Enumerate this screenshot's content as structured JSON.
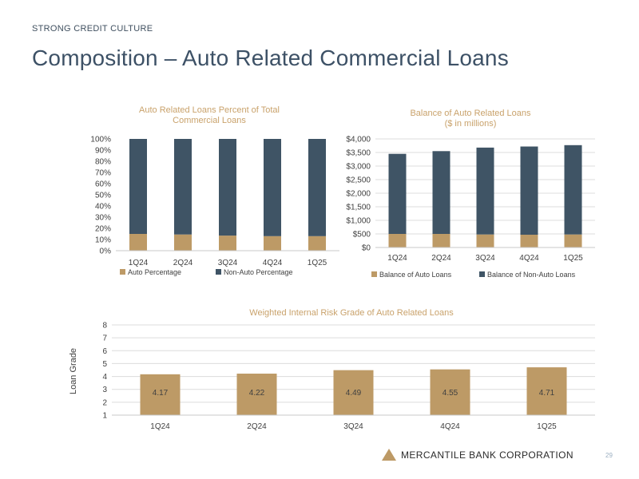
{
  "header": {
    "section": "STRONG CREDIT CULTURE",
    "title": "Composition – Auto Related Commercial Loans"
  },
  "colors": {
    "auto": "#bd9a66",
    "non_auto": "#3f5465",
    "title_gold": "#c9a26b",
    "grid": "#dcdcdc",
    "text": "#404040"
  },
  "chart_data": [
    {
      "id": "pct",
      "type": "bar",
      "stacked": true,
      "title_lines": [
        "Auto Related Loans Percent of Total",
        "Commercial Loans"
      ],
      "categories": [
        "1Q24",
        "2Q24",
        "3Q24",
        "4Q24",
        "1Q25"
      ],
      "series": [
        {
          "name": "Auto Percentage",
          "color_key": "auto",
          "values": [
            15,
            14.5,
            13.5,
            13,
            13
          ]
        },
        {
          "name": "Non-Auto Percentage",
          "color_key": "non_auto",
          "values": [
            85,
            85.5,
            86.5,
            87,
            87
          ]
        }
      ],
      "ylim": [
        0,
        100
      ],
      "yticks": [
        0,
        10,
        20,
        30,
        40,
        50,
        60,
        70,
        80,
        90,
        100
      ],
      "ytick_labels": [
        "0%",
        "10%",
        "20%",
        "30%",
        "40%",
        "50%",
        "60%",
        "70%",
        "80%",
        "90%",
        "100%"
      ],
      "gridlines": false,
      "legend": "bottom"
    },
    {
      "id": "bal",
      "type": "bar",
      "stacked": true,
      "title_lines": [
        "Balance of Auto Related Loans",
        "($ in millions)"
      ],
      "categories": [
        "1Q24",
        "2Q24",
        "3Q24",
        "4Q24",
        "1Q25"
      ],
      "series": [
        {
          "name": "Balance of Auto Loans",
          "color_key": "auto",
          "values": [
            500,
            500,
            480,
            470,
            480
          ]
        },
        {
          "name": "Balance of Non-Auto Loans",
          "color_key": "non_auto",
          "values": [
            2950,
            3050,
            3200,
            3250,
            3290
          ]
        }
      ],
      "ylim": [
        0,
        4000
      ],
      "yticks": [
        0,
        500,
        1000,
        1500,
        2000,
        2500,
        3000,
        3500,
        4000
      ],
      "ytick_labels": [
        "$0",
        "$500",
        "$1,000",
        "$1,500",
        "$2,000",
        "$2,500",
        "$3,000",
        "$3,500",
        "$4,000"
      ],
      "gridlines": true,
      "legend": "bottom"
    },
    {
      "id": "grade",
      "type": "bar",
      "stacked": false,
      "title_lines": [
        "Weighted Internal Risk Grade of Auto Related Loans"
      ],
      "categories": [
        "1Q24",
        "2Q24",
        "3Q24",
        "4Q24",
        "1Q25"
      ],
      "series": [
        {
          "name": "Loan Grade",
          "color_key": "auto",
          "values": [
            4.17,
            4.22,
            4.49,
            4.55,
            4.71
          ],
          "labels": [
            "4.17",
            "4.22",
            "4.49",
            "4.55",
            "4.71"
          ]
        }
      ],
      "ylim": [
        1,
        8
      ],
      "yticks": [
        1,
        2,
        3,
        4,
        5,
        6,
        7,
        8
      ],
      "ytick_labels": [
        "1",
        "2",
        "3",
        "4",
        "5",
        "6",
        "7",
        "8"
      ],
      "ylabel": "Loan Grade",
      "gridlines": true,
      "legend": "none"
    }
  ],
  "footer": {
    "company": "MERCANTILE BANK CORPORATION",
    "page": "29",
    "logo_icon": "triangle-logo-icon"
  }
}
